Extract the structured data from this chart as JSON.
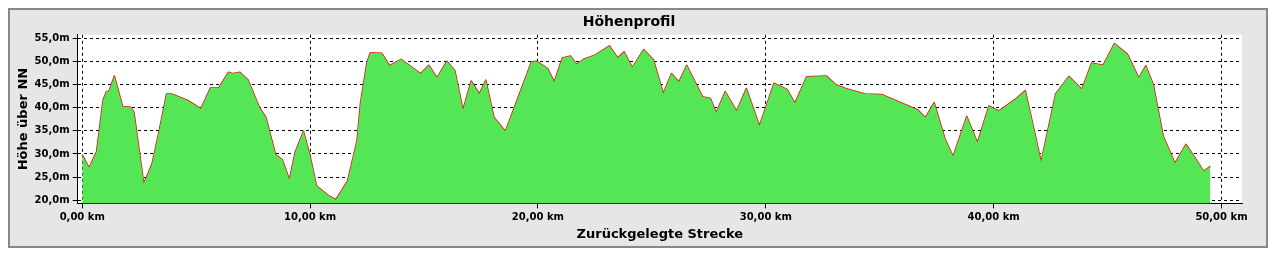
{
  "chart_data": {
    "type": "area",
    "title": "Höhenprofil",
    "xlabel": "Zurückgelegte Strecke",
    "ylabel": "Höhe über NN",
    "xlim": [
      -0.2,
      50.9
    ],
    "ylim": [
      19.3,
      55.8
    ],
    "xticks": [
      {
        "value": 0,
        "label": "0,00 km"
      },
      {
        "value": 10,
        "label": "10,00 km"
      },
      {
        "value": 20,
        "label": "20,00 km"
      },
      {
        "value": 30,
        "label": "30,00 km"
      },
      {
        "value": 40,
        "label": "40,00 km"
      },
      {
        "value": 50,
        "label": "50,00 km"
      }
    ],
    "yticks": [
      {
        "value": 20,
        "label": "20,0m"
      },
      {
        "value": 25,
        "label": "25,0m"
      },
      {
        "value": 30,
        "label": "30,0m"
      },
      {
        "value": 35,
        "label": "35,0m"
      },
      {
        "value": 40,
        "label": "40,0m"
      },
      {
        "value": 45,
        "label": "45,0m"
      },
      {
        "value": 50,
        "label": "50,0m"
      },
      {
        "value": 55,
        "label": "55,0m"
      }
    ],
    "grid": true,
    "legend": false,
    "x": [
      0,
      0.3,
      0.63,
      0.91,
      1.06,
      1.17,
      1.41,
      1.77,
      2.13,
      2.27,
      2.7,
      3.06,
      3.34,
      3.7,
      3.92,
      4.63,
      5.2,
      5.63,
      5.99,
      6.42,
      6.63,
      6.92,
      7.28,
      7.78,
      8.06,
      8.49,
      8.78,
      9.09,
      9.35,
      9.71,
      9.99,
      10.28,
      10.78,
      11.13,
      11.64,
      12.06,
      12.21,
      12.49,
      12.64,
      13.14,
      13.49,
      13.99,
      14.85,
      15.21,
      15.57,
      16,
      16.35,
      16.71,
      17.07,
      17.43,
      17.71,
      18.07,
      18.57,
      18.93,
      19.71,
      19.93,
      20.43,
      20.71,
      21.07,
      21.42,
      21.71,
      22,
      22.5,
      23.14,
      23.5,
      23.78,
      24.14,
      24.64,
      25.07,
      25.5,
      25.86,
      26.19,
      26.53,
      27.22,
      27.57,
      27.82,
      28.22,
      28.72,
      29.15,
      29.72,
      30.36,
      30.93,
      31.28,
      31.79,
      32.65,
      33.08,
      33.5,
      34.36,
      35.08,
      35.93,
      36.65,
      37.01,
      37.39,
      37.87,
      38.22,
      38.82,
      39.29,
      39.79,
      40.22,
      40.94,
      41.39,
      41.79,
      42.08,
      42.72,
      43.3,
      43.87,
      44.3,
      44.8,
      45.3,
      45.87,
      46.37,
      46.68,
      47.01,
      47.44,
      47.96,
      48.44,
      49.22,
      49.51
    ],
    "series": [
      {
        "color": "#55e655",
        "values": [
          29.8,
          27,
          30.5,
          41.6,
          43.5,
          43.5,
          46.9,
          40.3,
          40.1,
          39,
          23.6,
          27.8,
          34.2,
          43,
          43,
          41.6,
          39.8,
          44.3,
          44.3,
          47.7,
          47.4,
          47.7,
          46,
          40,
          37.9,
          29.8,
          28.8,
          24.5,
          30.5,
          34.9,
          29.8,
          23.1,
          21.1,
          20.1,
          24.1,
          32.9,
          41,
          49.7,
          51.9,
          51.8,
          49.1,
          50.5,
          47.4,
          49.2,
          46.5,
          50.1,
          48.1,
          39.6,
          45.8,
          43,
          46,
          37.9,
          34.9,
          39.6,
          49.9,
          50.1,
          48.5,
          45.6,
          50.8,
          51.2,
          49.4,
          50.5,
          51.4,
          53.4,
          50.8,
          52.1,
          48.7,
          52.6,
          50.4,
          43.1,
          47.4,
          45.6,
          49.2,
          42.4,
          42,
          38.9,
          43.5,
          39.3,
          44.2,
          36.1,
          45.3,
          44,
          41,
          46.7,
          46.9,
          45,
          44.2,
          43,
          42.9,
          41.1,
          39.6,
          37.9,
          41.1,
          33.2,
          29.5,
          38.1,
          32.5,
          40.4,
          39.3,
          41.8,
          43.7,
          34.9,
          28.3,
          43,
          46.8,
          44,
          49.7,
          49.2,
          53.9,
          51.6,
          46.5,
          49.1,
          45,
          33.9,
          28,
          32.1,
          26.3,
          27.3
        ]
      },
      {
        "type": "line",
        "color": "#e41010",
        "values": [
          29.8,
          27,
          30.5,
          41.6,
          43.5,
          43.5,
          46.9,
          40.3,
          40.1,
          39,
          23.6,
          27.8,
          34.2,
          43,
          43,
          41.6,
          39.8,
          44.3,
          44.3,
          47.7,
          47.4,
          47.7,
          46,
          40,
          37.9,
          29.8,
          28.8,
          24.5,
          30.5,
          34.9,
          29.8,
          23.1,
          21.1,
          20.1,
          24.1,
          32.9,
          41,
          49.7,
          51.9,
          51.8,
          49.1,
          50.5,
          47.4,
          49.2,
          46.5,
          50.1,
          48.1,
          39.6,
          45.8,
          43,
          46,
          37.9,
          34.9,
          39.6,
          49.9,
          50.1,
          48.5,
          45.6,
          50.8,
          51.2,
          49.4,
          50.5,
          51.4,
          53.4,
          50.8,
          52.1,
          48.7,
          52.6,
          50.4,
          43.1,
          47.4,
          45.6,
          49.2,
          42.4,
          42,
          38.9,
          43.5,
          39.3,
          44.2,
          36.1,
          45.3,
          44,
          41,
          46.7,
          46.9,
          45,
          44.2,
          43,
          42.9,
          41.1,
          39.6,
          37.9,
          41.1,
          33.2,
          29.5,
          38.1,
          32.5,
          40.4,
          39.3,
          41.8,
          43.7,
          34.9,
          28.3,
          43,
          46.8,
          44,
          49.7,
          49.2,
          53.9,
          51.6,
          46.5,
          49.1,
          45,
          33.9,
          28,
          32.1,
          26.3,
          27.3
        ]
      }
    ]
  }
}
